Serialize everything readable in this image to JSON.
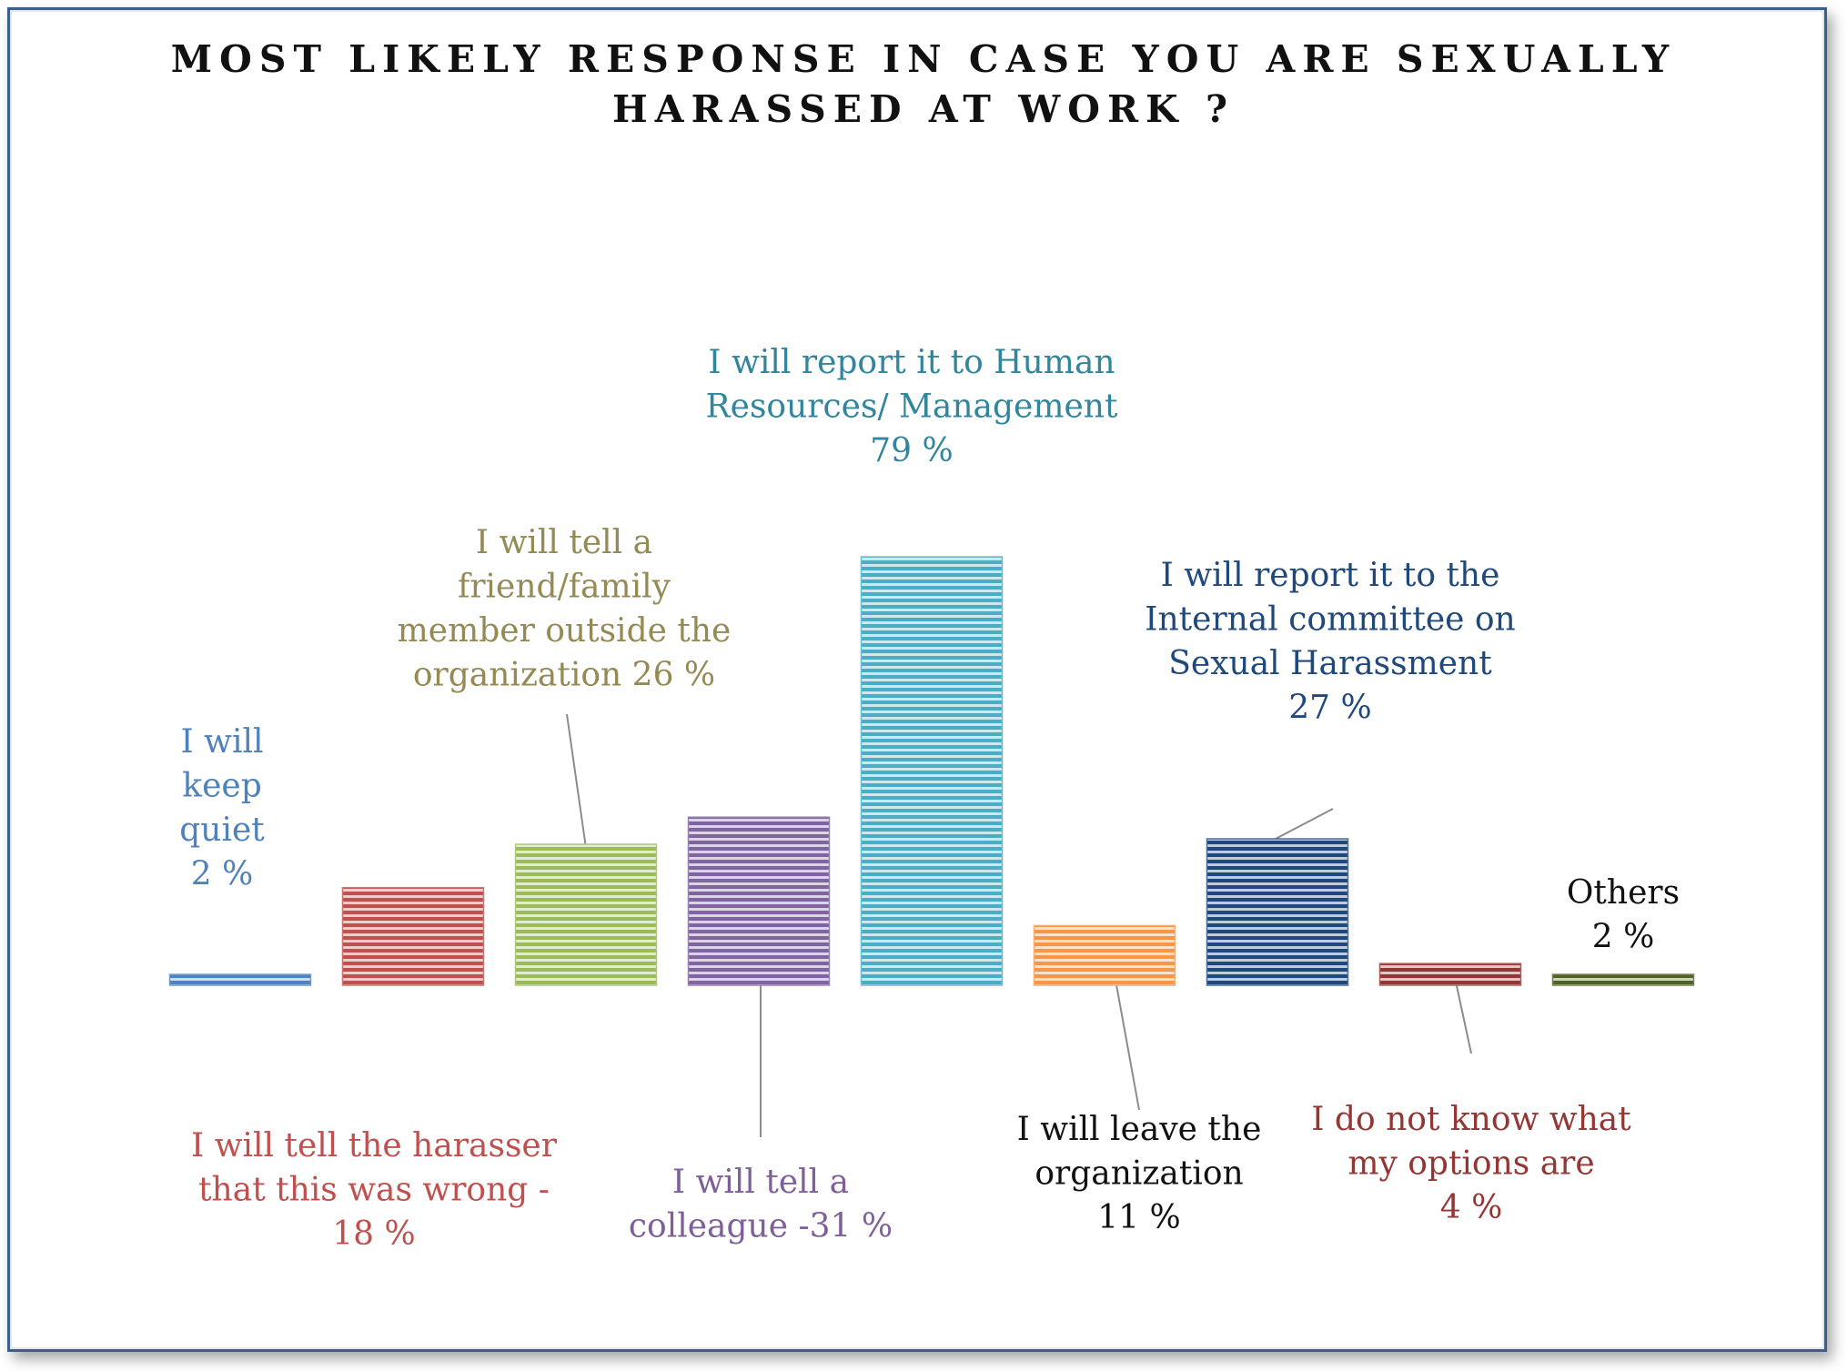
{
  "chart_data": {
    "type": "bar",
    "title": "MOST LIKELY RESPONSE IN CASE YOU ARE SEXUALLY HARASSED AT WORK ?",
    "title_lines": [
      "MOST LIKELY RESPONSE IN CASE YOU ARE SEXUALLY",
      "HARASSED AT WORK ?"
    ],
    "xlabel": "",
    "ylabel": "",
    "ylim": [
      0,
      79
    ],
    "grid": false,
    "legend": "none",
    "bar_style": "horizontal-stripes",
    "categories": [
      "I will keep quiet",
      "I will tell the harasser that this was wrong",
      "I will tell a friend/family member outside the organization",
      "I will tell a colleague",
      "I will report it to Human Resources/ Management",
      "I will leave the organization",
      "I will report it to the Internal committee on Sexual Harassment",
      "I do not know what my options are",
      "Others"
    ],
    "values": [
      2,
      18,
      26,
      31,
      79,
      11,
      27,
      4,
      2
    ],
    "colors": [
      "#4f81bd",
      "#c0504d",
      "#9bbb59",
      "#8064a2",
      "#4bacc6",
      "#f79646",
      "#1f497d",
      "#943634",
      "#4f6228"
    ],
    "label_colors": [
      "#4f81bd",
      "#c0504d",
      "#948a54",
      "#7f5f99",
      "#31859c",
      "#111111",
      "#1f497d",
      "#943634",
      "#111111"
    ],
    "data_labels": [
      [
        "I will",
        "keep",
        "quiet",
        "2 %"
      ],
      [
        "I will tell the harasser",
        "that this was wrong -",
        "18 %"
      ],
      [
        "I will tell a",
        "friend/family",
        "member outside the",
        "organization 26 %"
      ],
      [
        "I will tell a",
        "colleague -31 %"
      ],
      [
        "I will report it to Human",
        "Resources/ Management",
        "79 %"
      ],
      [
        "I will leave the",
        "organization",
        "11 %"
      ],
      [
        "I will report it to the",
        "Internal committee on",
        "Sexual Harassment",
        "27 %"
      ],
      [
        "I do not know what",
        "my options are",
        "4 %"
      ],
      [
        "Others",
        "2 %"
      ]
    ]
  }
}
